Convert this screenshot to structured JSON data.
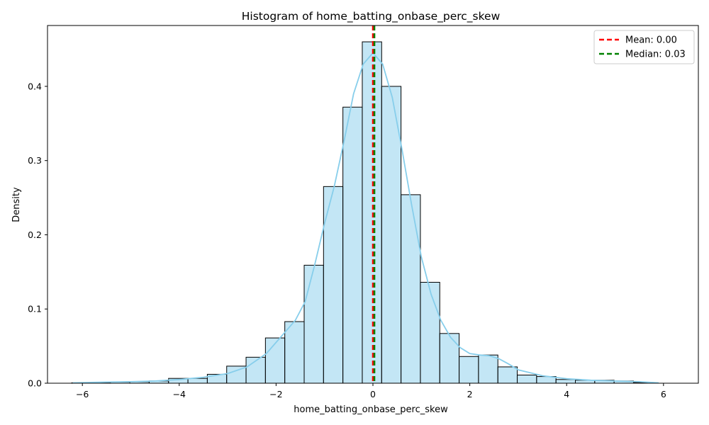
{
  "chart_data": {
    "type": "bar",
    "title": "Histogram of home_batting_onbase_perc_skew",
    "xlabel": "home_batting_onbase_perc_skew",
    "ylabel": "Density",
    "xlim": [
      -6.72,
      6.72
    ],
    "ylim": [
      0,
      0.482
    ],
    "x_ticks": [
      -6,
      -4,
      -2,
      0,
      2,
      4,
      6
    ],
    "y_ticks": [
      0.0,
      0.1,
      0.2,
      0.3,
      0.4
    ],
    "y_tick_labels": [
      "0.0",
      "0.1",
      "0.2",
      "0.3",
      "0.4"
    ],
    "grid": false,
    "legend_position": "top-right",
    "bin_edges": [
      -6.22,
      -5.82,
      -5.42,
      -5.02,
      -4.62,
      -4.22,
      -3.82,
      -3.42,
      -3.02,
      -2.62,
      -2.22,
      -1.82,
      -1.42,
      -1.02,
      -0.62,
      -0.22,
      0.18,
      0.58,
      0.98,
      1.38,
      1.78,
      2.18,
      2.58,
      2.98,
      3.38,
      3.78,
      4.18,
      4.58,
      4.98,
      5.38,
      5.78
    ],
    "values": [
      0.0005,
      0.001,
      0.0015,
      0.002,
      0.003,
      0.0065,
      0.0065,
      0.012,
      0.023,
      0.035,
      0.061,
      0.083,
      0.159,
      0.265,
      0.372,
      0.46,
      0.4,
      0.254,
      0.136,
      0.067,
      0.036,
      0.038,
      0.022,
      0.011,
      0.009,
      0.005,
      0.004,
      0.004,
      0.003,
      0.001
    ],
    "kde": {
      "x": [
        -6.2,
        -5.5,
        -5.0,
        -4.5,
        -4.0,
        -3.5,
        -3.0,
        -2.6,
        -2.2,
        -2.0,
        -1.8,
        -1.6,
        -1.4,
        -1.2,
        -1.0,
        -0.8,
        -0.6,
        -0.4,
        -0.2,
        0.0,
        0.2,
        0.4,
        0.6,
        0.8,
        1.0,
        1.2,
        1.4,
        1.6,
        1.8,
        2.0,
        2.2,
        2.4,
        2.6,
        2.8,
        3.0,
        3.5,
        4.0,
        4.5,
        5.0,
        5.5,
        5.9
      ],
      "y": [
        0.0005,
        0.0015,
        0.002,
        0.003,
        0.005,
        0.008,
        0.013,
        0.022,
        0.04,
        0.055,
        0.07,
        0.085,
        0.11,
        0.16,
        0.215,
        0.265,
        0.325,
        0.39,
        0.43,
        0.445,
        0.43,
        0.385,
        0.315,
        0.24,
        0.17,
        0.12,
        0.085,
        0.062,
        0.048,
        0.04,
        0.038,
        0.037,
        0.033,
        0.026,
        0.018,
        0.01,
        0.006,
        0.004,
        0.003,
        0.002,
        0.0005
      ],
      "color": "#87ceeb"
    },
    "bar_fill": "#87ceeb",
    "bar_edge": "#000000",
    "lines": [
      {
        "label": "Mean: 0.00",
        "x": 0.0,
        "color": "#ff0000"
      },
      {
        "label": "Median: 0.03",
        "x": 0.03,
        "color": "#008000"
      }
    ]
  }
}
